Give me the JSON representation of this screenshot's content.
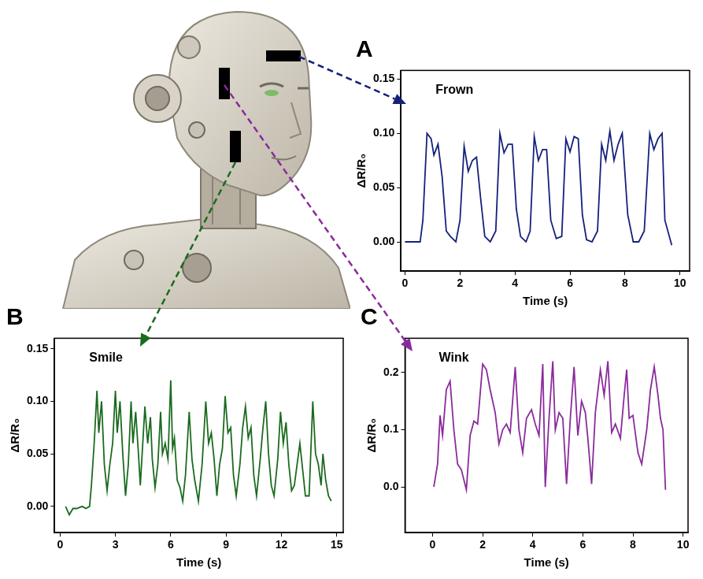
{
  "chart_data": [
    {
      "panel": "A",
      "type": "line",
      "title": "Frown",
      "x_label": "Time (s)",
      "y_label": "ΔR/R₀",
      "color": "#14217a",
      "grid": false,
      "xlim": [
        -0.15,
        10.35
      ],
      "xticks": [
        0,
        2,
        4,
        6,
        8,
        10
      ],
      "ylim": [
        -0.027,
        0.158
      ],
      "yticks": [
        {
          "value": 0,
          "label": "0.00"
        },
        {
          "value": 0.05,
          "label": "0.05"
        },
        {
          "value": 0.1,
          "label": "0.10"
        },
        {
          "value": 0.15,
          "label": "0.15"
        }
      ],
      "x": [
        0,
        0.3,
        0.55,
        0.65,
        0.8,
        0.95,
        1.05,
        1.2,
        1.35,
        1.5,
        1.65,
        1.85,
        2.0,
        2.15,
        2.3,
        2.45,
        2.6,
        2.75,
        2.9,
        3.1,
        3.3,
        3.45,
        3.6,
        3.75,
        3.9,
        4.05,
        4.2,
        4.4,
        4.55,
        4.7,
        4.85,
        5.0,
        5.15,
        5.3,
        5.5,
        5.7,
        5.85,
        6.0,
        6.15,
        6.3,
        6.45,
        6.6,
        6.8,
        7.0,
        7.15,
        7.3,
        7.45,
        7.6,
        7.75,
        7.9,
        8.1,
        8.3,
        8.5,
        8.7,
        8.9,
        9.05,
        9.2,
        9.35,
        9.45,
        9.7
      ],
      "values": [
        0,
        0,
        0,
        0.02,
        0.1,
        0.095,
        0.08,
        0.09,
        0.06,
        0.01,
        0.005,
        0,
        0.02,
        0.088,
        0.065,
        0.075,
        0.078,
        0.04,
        0.005,
        0,
        0.01,
        0.1,
        0.082,
        0.09,
        0.09,
        0.03,
        0.005,
        0,
        0.01,
        0.097,
        0.075,
        0.085,
        0.085,
        0.02,
        0.003,
        0.005,
        0.095,
        0.083,
        0.097,
        0.095,
        0.025,
        0.002,
        0,
        0.01,
        0.09,
        0.075,
        0.102,
        0.075,
        0.09,
        0.1,
        0.025,
        0,
        0,
        0.01,
        0.1,
        0.085,
        0.095,
        0.1,
        0.02,
        -0.003
      ]
    },
    {
      "panel": "B",
      "type": "line",
      "title": "Smile",
      "x_label": "Time (s)",
      "y_label": "ΔR/R₀",
      "color": "#1b6b1f",
      "grid": false,
      "xlim": [
        -0.3,
        15.35
      ],
      "xticks": [
        0,
        3,
        6,
        9,
        12,
        15
      ],
      "ylim": [
        -0.025,
        0.16
      ],
      "yticks": [
        {
          "value": 0,
          "label": "0.00"
        },
        {
          "value": 0.05,
          "label": "0.05"
        },
        {
          "value": 0.1,
          "label": "0.10"
        },
        {
          "value": 0.15,
          "label": "0.15"
        }
      ],
      "x": [
        0.3,
        0.5,
        0.7,
        0.9,
        1.2,
        1.4,
        1.6,
        1.7,
        1.85,
        2.0,
        2.1,
        2.25,
        2.4,
        2.55,
        2.7,
        2.85,
        3.0,
        3.1,
        3.25,
        3.4,
        3.55,
        3.7,
        3.85,
        3.95,
        4.1,
        4.25,
        4.35,
        4.5,
        4.6,
        4.75,
        4.9,
        5.0,
        5.15,
        5.3,
        5.45,
        5.55,
        5.7,
        5.85,
        6.0,
        6.1,
        6.2,
        6.35,
        6.5,
        6.65,
        6.8,
        7.0,
        7.15,
        7.3,
        7.5,
        7.7,
        7.9,
        8.05,
        8.2,
        8.35,
        8.5,
        8.65,
        8.8,
        8.95,
        9.1,
        9.25,
        9.4,
        9.55,
        9.75,
        9.9,
        10.05,
        10.2,
        10.35,
        10.5,
        10.65,
        10.85,
        11.0,
        11.15,
        11.3,
        11.45,
        11.6,
        11.8,
        11.95,
        12.1,
        12.25,
        12.4,
        12.55,
        12.7,
        12.85,
        13.0,
        13.15,
        13.3,
        13.5,
        13.7,
        13.85,
        14.0,
        14.15,
        14.25,
        14.4,
        14.55,
        14.7
      ],
      "values": [
        0,
        -0.008,
        -0.002,
        -0.002,
        0,
        -0.002,
        0,
        0.02,
        0.06,
        0.11,
        0.07,
        0.1,
        0.04,
        0.015,
        0.04,
        0.06,
        0.11,
        0.07,
        0.1,
        0.05,
        0.01,
        0.04,
        0.1,
        0.06,
        0.09,
        0.05,
        0.02,
        0.065,
        0.095,
        0.06,
        0.085,
        0.045,
        0.018,
        0.04,
        0.09,
        0.05,
        0.06,
        0.045,
        0.12,
        0.055,
        0.065,
        0.025,
        0.018,
        0.005,
        0.03,
        0.09,
        0.045,
        0.025,
        0.005,
        0.04,
        0.1,
        0.06,
        0.07,
        0.045,
        0.01,
        0.04,
        0.055,
        0.105,
        0.07,
        0.075,
        0.03,
        0.01,
        0.04,
        0.075,
        0.095,
        0.065,
        0.075,
        0.03,
        0.01,
        0.045,
        0.075,
        0.1,
        0.05,
        0.02,
        0.01,
        0.045,
        0.09,
        0.06,
        0.08,
        0.04,
        0.015,
        0.02,
        0.04,
        0.06,
        0.035,
        0.01,
        0.01,
        0.1,
        0.05,
        0.04,
        0.02,
        0.05,
        0.025,
        0.01,
        0.005
      ]
    },
    {
      "panel": "C",
      "type": "line",
      "title": "Wink",
      "x_label": "Time (s)",
      "y_label": "ΔR/R₀",
      "color": "#8a2a9c",
      "grid": false,
      "xlim": [
        -1.1,
        10.2
      ],
      "xticks": [
        0,
        2,
        4,
        6,
        8,
        10
      ],
      "ylim": [
        -0.08,
        0.26
      ],
      "yticks": [
        {
          "value": 0,
          "label": "0.0"
        },
        {
          "value": 0.1,
          "label": "0.1"
        },
        {
          "value": 0.2,
          "label": "0.2"
        }
      ],
      "x": [
        0.05,
        0.2,
        0.3,
        0.4,
        0.55,
        0.7,
        0.85,
        1.0,
        1.15,
        1.35,
        1.5,
        1.65,
        1.8,
        2.0,
        2.15,
        2.3,
        2.5,
        2.65,
        2.8,
        2.95,
        3.1,
        3.3,
        3.45,
        3.6,
        3.75,
        3.95,
        4.1,
        4.25,
        4.4,
        4.5,
        4.65,
        4.8,
        4.9,
        5.05,
        5.2,
        5.35,
        5.5,
        5.65,
        5.8,
        5.95,
        6.1,
        6.2,
        6.35,
        6.5,
        6.7,
        6.85,
        7.0,
        7.15,
        7.3,
        7.5,
        7.65,
        7.75,
        7.85,
        8.0,
        8.2,
        8.35,
        8.55,
        8.7,
        8.85,
        9.0,
        9.1,
        9.2,
        9.3
      ],
      "values": [
        0,
        0.04,
        0.125,
        0.09,
        0.17,
        0.185,
        0.1,
        0.04,
        0.03,
        -0.005,
        0.09,
        0.115,
        0.11,
        0.215,
        0.205,
        0.17,
        0.13,
        0.075,
        0.1,
        0.11,
        0.095,
        0.21,
        0.1,
        0.06,
        0.12,
        0.135,
        0.11,
        0.09,
        0.215,
        0,
        0.12,
        0.22,
        0.1,
        0.13,
        0.12,
        0.005,
        0.12,
        0.21,
        0.09,
        0.15,
        0.13,
        0.085,
        0.005,
        0.13,
        0.205,
        0.16,
        0.22,
        0.095,
        0.11,
        0.085,
        0.16,
        0.205,
        0.12,
        0.125,
        0.06,
        0.04,
        0.1,
        0.17,
        0.21,
        0.16,
        0.12,
        0.1,
        -0.005
      ]
    }
  ]
}
